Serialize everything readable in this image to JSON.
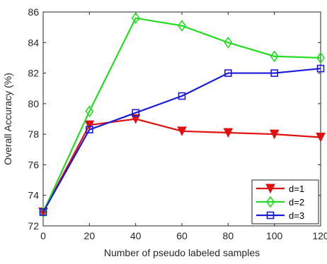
{
  "chart_data": {
    "type": "line",
    "title": "",
    "xlabel": "Number of pseudo labeled samples",
    "ylabel": "Overall Accuracy (%)",
    "x": [
      0,
      20,
      40,
      60,
      80,
      100,
      120
    ],
    "xlim": [
      0,
      120
    ],
    "ylim": [
      72,
      86
    ],
    "xticks": [
      "0",
      "20",
      "40",
      "60",
      "80",
      "100",
      "120"
    ],
    "yticks": [
      "72",
      "74",
      "76",
      "78",
      "80",
      "82",
      "84",
      "86"
    ],
    "grid": false,
    "legend_position": "bottom-right",
    "series": [
      {
        "name": "d=1",
        "color": "#e01010",
        "marker": "triangle-down",
        "values": [
          72.9,
          78.6,
          79.0,
          78.2,
          78.1,
          78.0,
          77.8
        ]
      },
      {
        "name": "d=2",
        "color": "#22dd22",
        "marker": "diamond",
        "values": [
          72.9,
          79.5,
          85.6,
          85.1,
          84.0,
          83.1,
          83.0
        ]
      },
      {
        "name": "d=3",
        "color": "#1a1ad8",
        "marker": "square",
        "values": [
          72.9,
          78.3,
          79.4,
          80.5,
          82.0,
          82.0,
          82.3
        ]
      }
    ]
  }
}
